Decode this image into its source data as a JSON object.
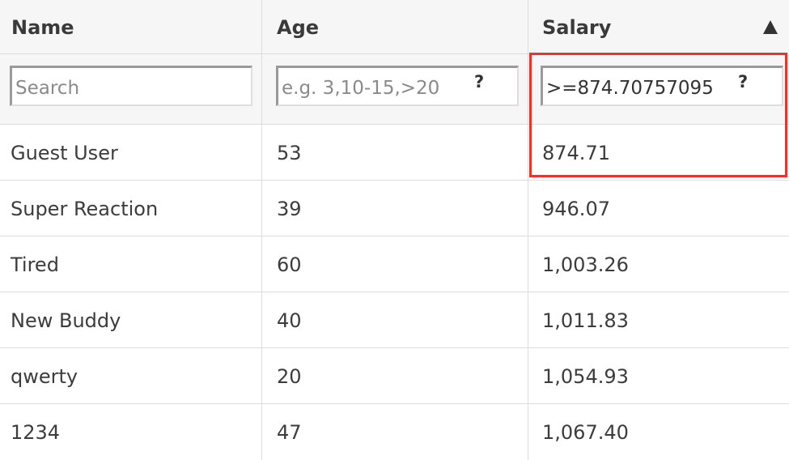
{
  "columns": [
    {
      "label": "Name"
    },
    {
      "label": "Age"
    },
    {
      "label": "Salary",
      "sort": "ascending"
    }
  ],
  "filters": {
    "name": {
      "value": "",
      "placeholder": "Search"
    },
    "age": {
      "value": "",
      "placeholder": "e.g. 3,10-15,>20",
      "help": "?"
    },
    "salary": {
      "value": ">=874.70757095",
      "placeholder": "",
      "help": "?"
    }
  },
  "rows": [
    {
      "name": "Guest User",
      "age": "53",
      "salary": "874.71"
    },
    {
      "name": "Super Reaction",
      "age": "39",
      "salary": "946.07"
    },
    {
      "name": "Tired",
      "age": "60",
      "salary": "1,003.26"
    },
    {
      "name": "New Buddy",
      "age": "40",
      "salary": "1,011.83"
    },
    {
      "name": "qwerty",
      "age": "20",
      "salary": "1,054.93"
    },
    {
      "name": "1234",
      "age": "47",
      "salary": "1,067.40"
    }
  ],
  "colors": {
    "highlight": "#e8352c",
    "header_bg": "#f6f6f6",
    "border": "#dcdcdc"
  }
}
